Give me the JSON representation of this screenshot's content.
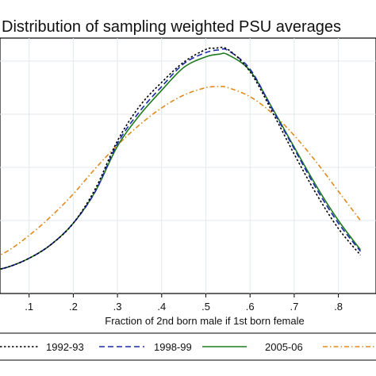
{
  "chart_data": {
    "type": "line",
    "title": "Distribution of sampling weighted PSU averages",
    "xlabel": "Fraction of 2nd born male if 1st born female",
    "ylabel": "",
    "xlim": [
      0,
      0.85
    ],
    "ylim": [
      0,
      4.3
    ],
    "x_ticks": [
      ".1",
      ".2",
      ".3",
      ".4",
      ".5",
      ".6",
      ".7",
      ".8"
    ],
    "grid": {
      "x": true,
      "y": true
    },
    "legend_position": "bottom",
    "series": [
      {
        "name": "1992-93",
        "style": "dotted",
        "color": "#000000",
        "x": [
          0,
          0.05,
          0.1,
          0.15,
          0.2,
          0.25,
          0.3,
          0.35,
          0.4,
          0.45,
          0.5,
          0.52,
          0.55,
          0.6,
          0.65,
          0.7,
          0.75,
          0.8,
          0.85
        ],
        "y": [
          0.03,
          0.12,
          0.29,
          0.55,
          0.95,
          1.6,
          2.5,
          3.15,
          3.6,
          3.98,
          4.22,
          4.24,
          4.22,
          3.8,
          3.05,
          2.25,
          1.5,
          0.85,
          0.35
        ]
      },
      {
        "name": "1998-99",
        "style": "dashed",
        "color": "#1a2aa8",
        "x": [
          0,
          0.05,
          0.1,
          0.15,
          0.2,
          0.25,
          0.3,
          0.35,
          0.4,
          0.45,
          0.5,
          0.53,
          0.55,
          0.6,
          0.65,
          0.7,
          0.75,
          0.8,
          0.85
        ],
        "y": [
          0.03,
          0.12,
          0.29,
          0.55,
          0.95,
          1.55,
          2.45,
          3.05,
          3.52,
          3.95,
          4.16,
          4.21,
          4.2,
          3.85,
          3.1,
          2.35,
          1.6,
          0.95,
          0.42
        ]
      },
      {
        "name": "2005-06",
        "style": "solid",
        "color": "#1e7a1e",
        "x": [
          0,
          0.05,
          0.1,
          0.15,
          0.2,
          0.25,
          0.3,
          0.35,
          0.4,
          0.45,
          0.5,
          0.53,
          0.55,
          0.6,
          0.65,
          0.7,
          0.75,
          0.8,
          0.85
        ],
        "y": [
          0.03,
          0.12,
          0.29,
          0.55,
          0.95,
          1.55,
          2.4,
          2.98,
          3.45,
          3.88,
          4.08,
          4.13,
          4.12,
          3.82,
          3.12,
          2.38,
          1.65,
          1.0,
          0.45
        ]
      },
      {
        "color": "#e08a1e",
        "style": "dash-dot",
        "x": [
          0,
          0.05,
          0.1,
          0.15,
          0.2,
          0.25,
          0.3,
          0.35,
          0.4,
          0.45,
          0.5,
          0.53,
          0.55,
          0.6,
          0.65,
          0.7,
          0.75,
          0.8,
          0.85
        ],
        "y": [
          0.22,
          0.42,
          0.72,
          1.08,
          1.5,
          1.98,
          2.42,
          2.8,
          3.12,
          3.36,
          3.5,
          3.52,
          3.5,
          3.33,
          3.02,
          2.6,
          2.1,
          1.55,
          1.0
        ]
      }
    ]
  }
}
